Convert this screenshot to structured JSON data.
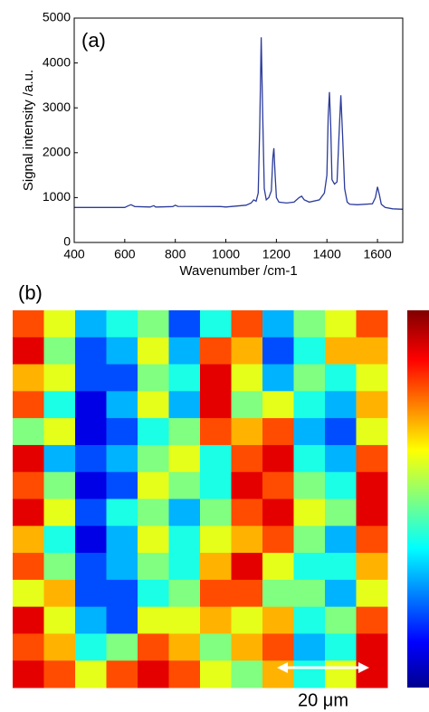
{
  "chart_data": [
    {
      "type": "line",
      "panel_label": "(a)",
      "x_label": "Wavenumber /cm-1",
      "y_label": "Signal intensity /a.u.",
      "xlim": [
        400,
        1700
      ],
      "ylim": [
        0,
        5000
      ],
      "xticks": [
        400,
        600,
        800,
        1000,
        1200,
        1400,
        1600
      ],
      "yticks": [
        0,
        1000,
        2000,
        3000,
        4000,
        5000
      ],
      "series": [
        {
          "color": "#2b3b9c",
          "x": [
            400,
            600,
            615,
            625,
            640,
            700,
            715,
            722,
            730,
            790,
            800,
            810,
            980,
            1000,
            1020,
            1080,
            1100,
            1110,
            1120,
            1128,
            1134,
            1140,
            1146,
            1152,
            1160,
            1170,
            1180,
            1186,
            1190,
            1195,
            1200,
            1210,
            1240,
            1270,
            1290,
            1300,
            1310,
            1330,
            1370,
            1390,
            1400,
            1405,
            1410,
            1415,
            1420,
            1430,
            1440,
            1448,
            1455,
            1462,
            1470,
            1480,
            1490,
            1520,
            1580,
            1592,
            1600,
            1608,
            1615,
            1630,
            1660,
            1700
          ],
          "values": [
            780,
            780,
            820,
            840,
            800,
            790,
            820,
            790,
            790,
            800,
            830,
            805,
            800,
            790,
            800,
            830,
            880,
            950,
            920,
            1100,
            2600,
            4570,
            2800,
            1200,
            950,
            1000,
            1150,
            1900,
            2100,
            1500,
            1000,
            900,
            880,
            900,
            1000,
            1030,
            950,
            900,
            950,
            1100,
            1500,
            2800,
            3350,
            2600,
            1400,
            1300,
            1350,
            2400,
            3280,
            2400,
            1200,
            900,
            850,
            840,
            860,
            1000,
            1240,
            1050,
            850,
            780,
            750,
            740
          ]
        }
      ]
    },
    {
      "type": "heatmap",
      "panel_label": "(b)",
      "scale_label": "20 μm",
      "colormap": "jet",
      "zlim": [
        0,
        10
      ],
      "values": [
        [
          8,
          6,
          3,
          4,
          5,
          2,
          4,
          8,
          3,
          5,
          6,
          8
        ],
        [
          9,
          5,
          2,
          3,
          6,
          3,
          8,
          7,
          2,
          4,
          7,
          7
        ],
        [
          7,
          6,
          2,
          2,
          5,
          4,
          9,
          6,
          3,
          5,
          4,
          6
        ],
        [
          8,
          4,
          1,
          3,
          6,
          3,
          9,
          5,
          6,
          4,
          3,
          7
        ],
        [
          5,
          6,
          1,
          2,
          4,
          5,
          8,
          7,
          8,
          3,
          2,
          6
        ],
        [
          9,
          3,
          2,
          3,
          5,
          6,
          4,
          8,
          9,
          4,
          3,
          8
        ],
        [
          8,
          5,
          1,
          2,
          6,
          5,
          4,
          9,
          8,
          5,
          4,
          9
        ],
        [
          9,
          6,
          2,
          4,
          5,
          3,
          5,
          8,
          9,
          6,
          5,
          9
        ],
        [
          7,
          4,
          1,
          3,
          6,
          4,
          6,
          7,
          8,
          5,
          3,
          8
        ],
        [
          8,
          5,
          2,
          3,
          5,
          4,
          7,
          9,
          6,
          4,
          4,
          7
        ],
        [
          6,
          7,
          2,
          2,
          4,
          5,
          8,
          8,
          5,
          5,
          3,
          6
        ],
        [
          9,
          6,
          3,
          2,
          6,
          6,
          7,
          6,
          7,
          4,
          5,
          8
        ],
        [
          8,
          7,
          4,
          5,
          8,
          7,
          5,
          7,
          8,
          3,
          4,
          9
        ],
        [
          9,
          8,
          6,
          8,
          9,
          8,
          6,
          5,
          7,
          4,
          6,
          9
        ]
      ]
    }
  ]
}
